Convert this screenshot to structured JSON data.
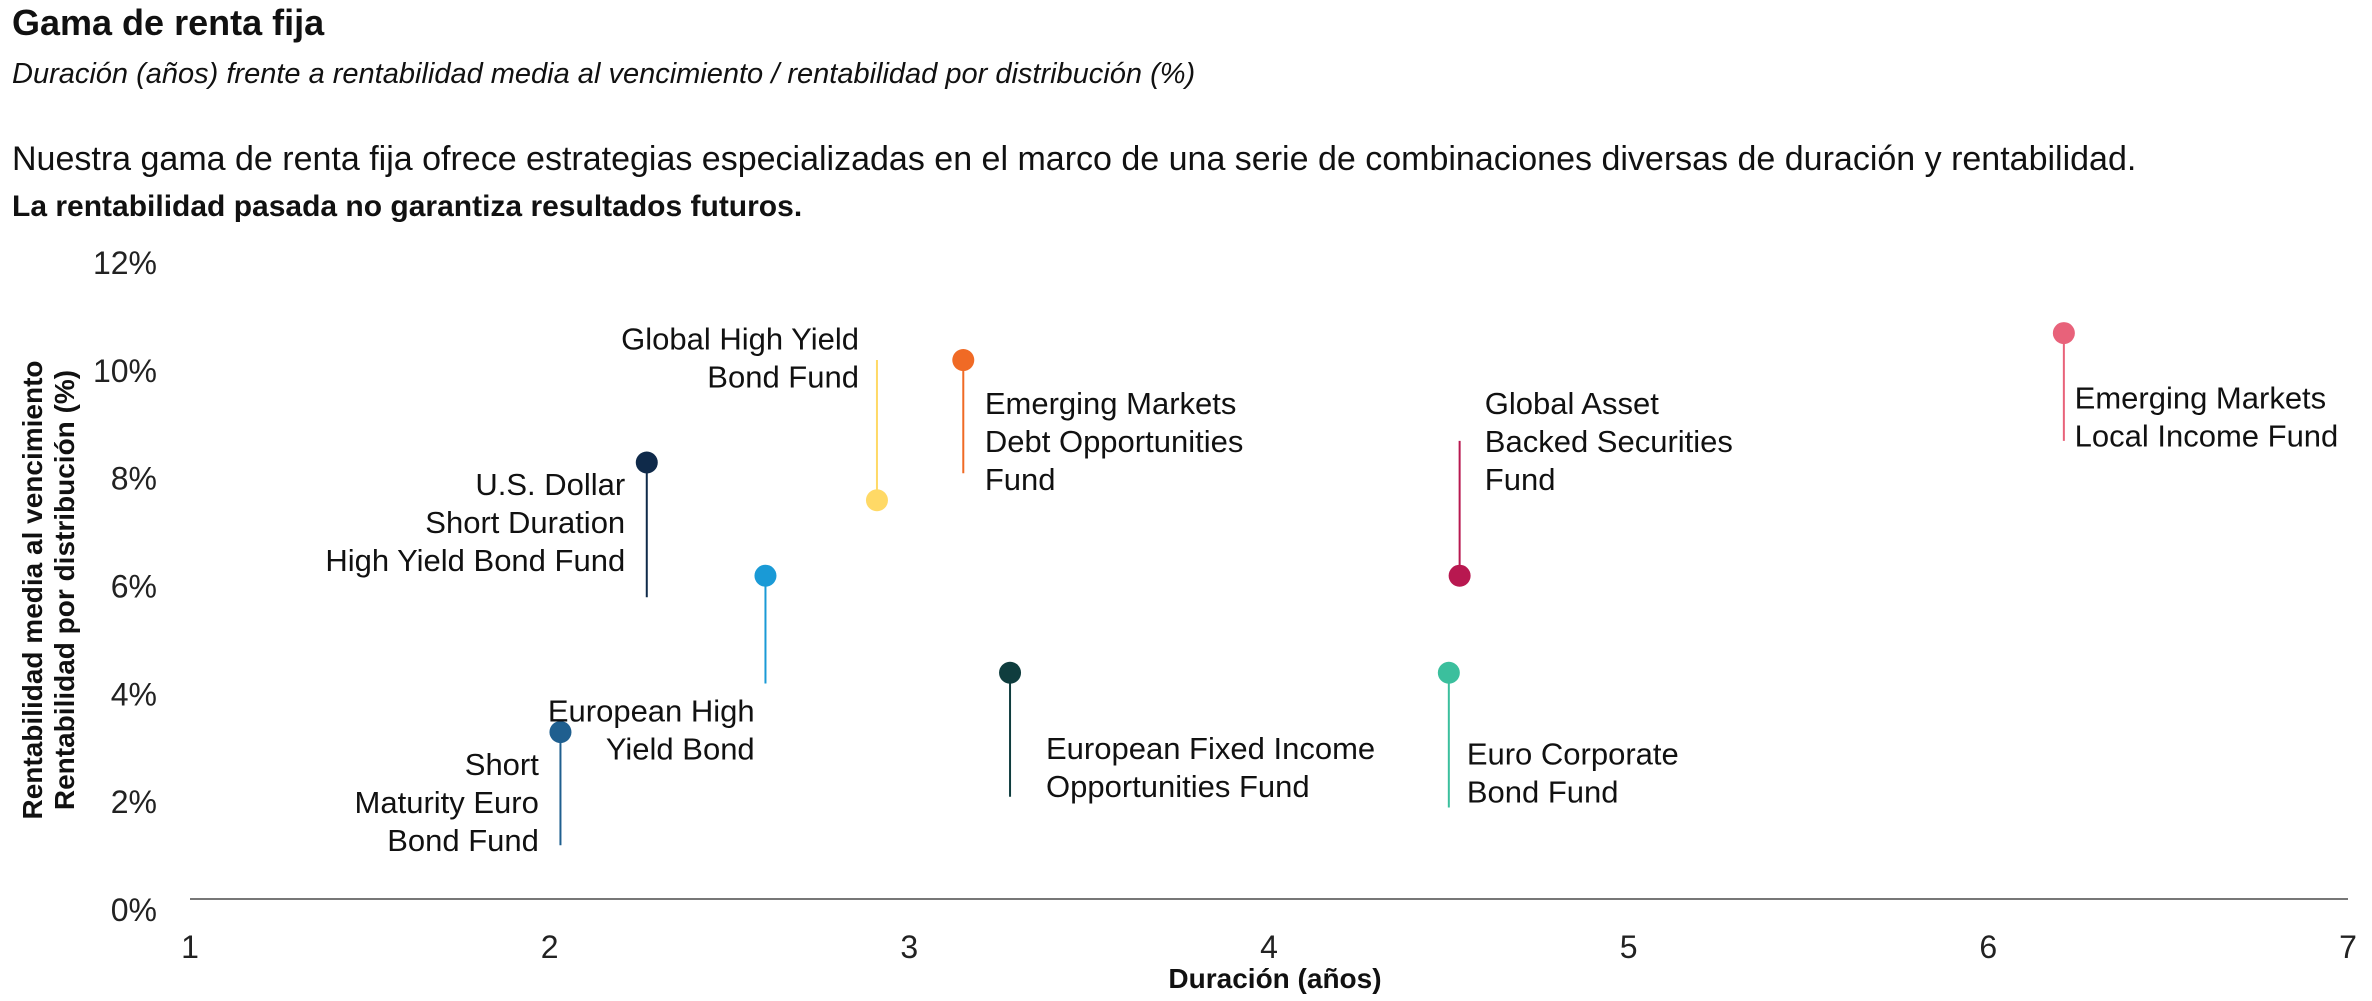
{
  "header": {
    "title": "Gama de renta fija",
    "subtitle": "Duración (años) frente a rentabilidad media al vencimiento / rentabilidad por distribución (%)",
    "description": "Nuestra gama de renta fija ofrece estrategias especializadas en el marco de una serie de combinaciones diversas de duración y rentabilidad.",
    "disclaimer": "La rentabilidad pasada no garantiza resultados futuros."
  },
  "chart_data": {
    "type": "scatter",
    "xlabel": "Duración (años)",
    "ylabel_lines": [
      "Rentabilidad media al vencimiento",
      "Rentabilidad por distribución (%)"
    ],
    "xlim": [
      1,
      7
    ],
    "ylim": [
      0,
      12
    ],
    "x_ticks": [
      "1",
      "2",
      "3",
      "4",
      "5",
      "6",
      "7"
    ],
    "y_ticks": [
      "0%",
      "2%",
      "4%",
      "6%",
      "8%",
      "10%",
      "12%"
    ],
    "grid": false,
    "points": [
      {
        "label": [
          "Short",
          "Maturity Euro",
          "Bond Fund"
        ],
        "x": 2.03,
        "y": 3.3,
        "color": "#1f5f8f",
        "stem": "down",
        "stem_to": 1.2,
        "label_side": "left",
        "label_x": 1.97,
        "label_y": 2.5
      },
      {
        "label": [
          "U.S. Dollar",
          "Short Duration",
          "High Yield Bond Fund"
        ],
        "x": 2.27,
        "y": 8.3,
        "color": "#0f2a4a",
        "stem": "down",
        "stem_to": 5.8,
        "label_side": "left",
        "label_x": 2.21,
        "label_y": 7.7
      },
      {
        "label": [
          "European High",
          "Yield Bond"
        ],
        "x": 2.6,
        "y": 6.2,
        "color": "#1a9ad6",
        "stem": "down",
        "stem_to": 4.2,
        "label_side": "left",
        "label_x": 2.57,
        "label_y": 3.5
      },
      {
        "label": [
          "Global High Yield",
          "Bond Fund"
        ],
        "x": 2.91,
        "y": 7.6,
        "color": "#ffd966",
        "stem": "up",
        "stem_to": 10.2,
        "label_side": "left",
        "label_x": 2.86,
        "label_y": 10.4
      },
      {
        "label": [
          "Emerging Markets",
          "Debt Opportunities",
          "Fund"
        ],
        "x": 3.15,
        "y": 10.2,
        "color": "#f06a25",
        "stem": "down",
        "stem_to": 8.1,
        "label_side": "right",
        "label_x": 3.21,
        "label_y": 9.2
      },
      {
        "label": [
          "European Fixed Income",
          "Opportunities Fund"
        ],
        "x": 3.28,
        "y": 4.4,
        "color": "#0f3d3e",
        "stem": "down",
        "stem_to": 2.1,
        "label_side": "right",
        "label_x": 3.38,
        "label_y": 2.8
      },
      {
        "label": [
          "Global Asset",
          "Backed Securities",
          "Fund"
        ],
        "x": 4.53,
        "y": 6.2,
        "color": "#b81850",
        "stem": "up",
        "stem_to": 8.7,
        "label_side": "right",
        "label_x": 4.6,
        "label_y": 9.2
      },
      {
        "label": [
          "Euro Corporate",
          "Bond Fund"
        ],
        "x": 4.5,
        "y": 4.4,
        "color": "#3bbf9d",
        "stem": "down",
        "stem_to": 1.9,
        "label_side": "right",
        "label_x": 4.55,
        "label_y": 2.7
      },
      {
        "label": [
          "Emerging Markets",
          "Local Income Fund"
        ],
        "x": 6.21,
        "y": 10.7,
        "color": "#e8627a",
        "stem": "down",
        "stem_to": 8.7,
        "label_side": "right",
        "label_x": 6.24,
        "label_y": 9.3
      }
    ]
  }
}
